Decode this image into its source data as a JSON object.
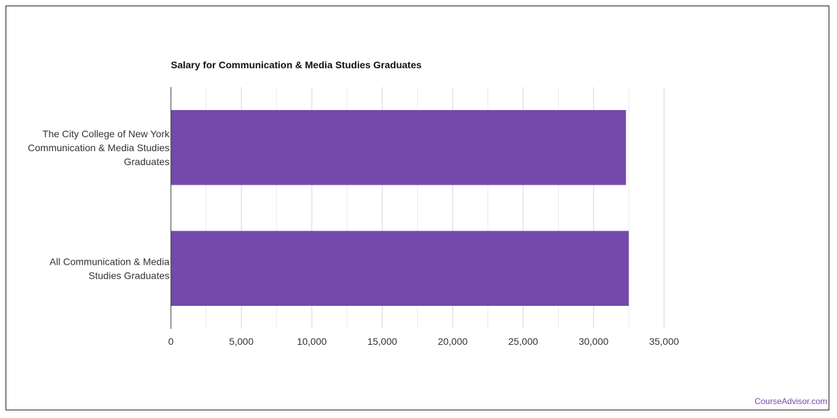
{
  "brand": {
    "credit": "CourseAdvisor.com",
    "accent": "#7449ab"
  },
  "chart_data": {
    "type": "bar",
    "orientation": "horizontal",
    "title": "Salary for Communication & Media Studies Graduates",
    "xlabel": "",
    "ylabel": "",
    "categories": [
      [
        "The City College of New York",
        "Communication & Media Studies",
        "Graduates"
      ],
      [
        "All Communication & Media",
        "Studies Graduates"
      ]
    ],
    "values": [
      32300,
      32500
    ],
    "bar_color": "#7449ab",
    "xlim": [
      0,
      35000
    ],
    "xticks": [
      0,
      5000,
      10000,
      15000,
      20000,
      25000,
      30000,
      35000
    ],
    "xtick_labels": [
      "0",
      "5,000",
      "10,000",
      "15,000",
      "20,000",
      "25,000",
      "30,000",
      "35,000"
    ],
    "grid": true,
    "legend": "none"
  }
}
